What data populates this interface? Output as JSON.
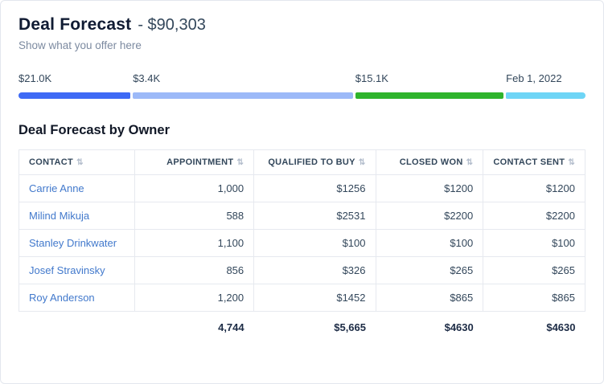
{
  "header": {
    "title": "Deal Forecast",
    "amount": "- $90,303",
    "subtitle": "Show what you offer here"
  },
  "progress": {
    "segments": [
      {
        "label": "$21.0K",
        "color": "#3e6af5",
        "width_pct": 20.0
      },
      {
        "label": "$3.4K",
        "color": "#9cb9f8",
        "width_pct": 39.3
      },
      {
        "label": "$15.1K",
        "color": "#2eb42c",
        "width_pct": 26.5
      },
      {
        "label": "Feb 1, 2022",
        "color": "#6ed5f6",
        "width_pct": 14.2
      }
    ]
  },
  "icons": {
    "sort": "⇅"
  },
  "table": {
    "title": "Deal Forecast by Owner",
    "columns": [
      "CONTACT",
      "APPOINTMENT",
      "QUALIFIED TO BUY",
      "CLOSED WON",
      "CONTACT SENT"
    ],
    "rows": [
      [
        "Carrie Anne",
        "1,000",
        "$1256",
        "$1200",
        "$1200"
      ],
      [
        "Milind Mikuja",
        "588",
        "$2531",
        "$2200",
        "$2200"
      ],
      [
        "Stanley Drinkwater",
        "1,100",
        "$100",
        "$100",
        "$100"
      ],
      [
        "Josef Stravinsky",
        "856",
        "$326",
        "$265",
        "$265"
      ],
      [
        "Roy Anderson",
        "1,200",
        "$1452",
        "$865",
        "$865"
      ]
    ],
    "totals": [
      "",
      "4,744",
      "$5,665",
      "$4630",
      "$4630"
    ]
  }
}
